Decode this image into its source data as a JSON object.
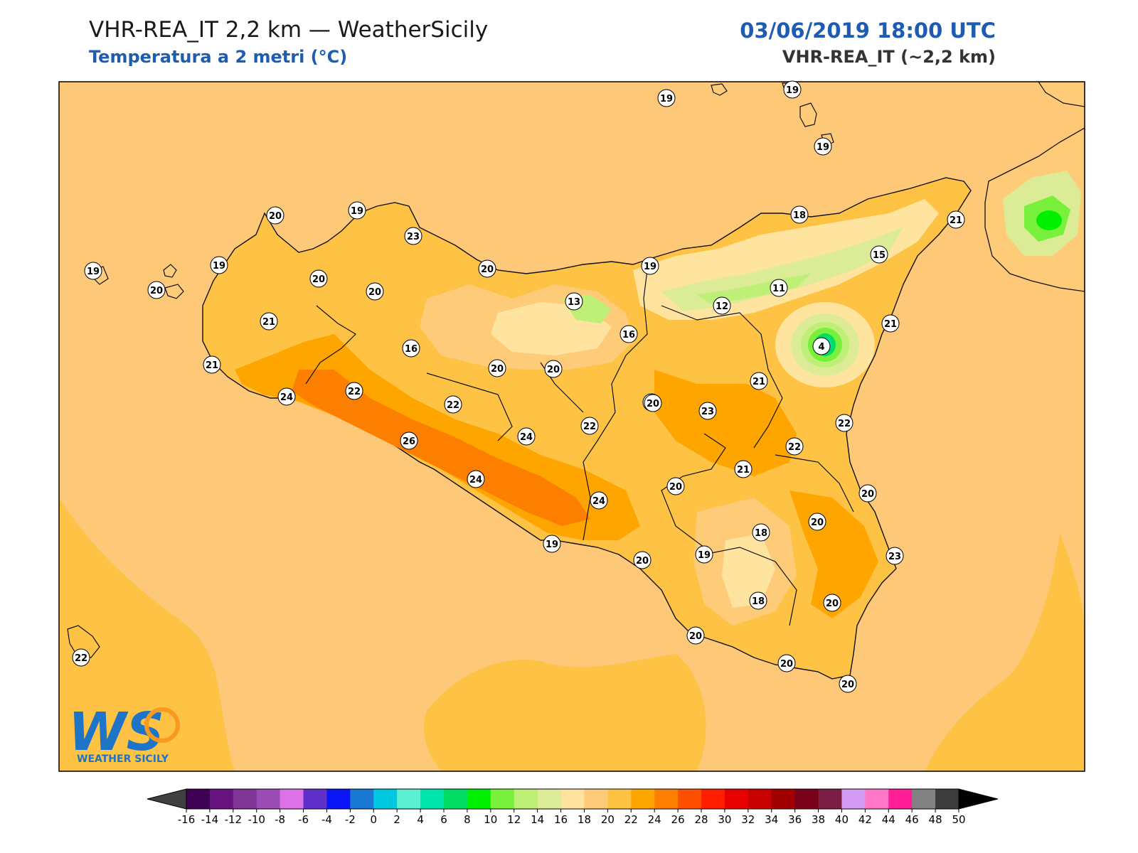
{
  "header": {
    "title": "VHR-REA_IT 2,2 km — WeatherSicily",
    "subtitle": "Temperatura a 2 metri (°C)",
    "datetime": "03/06/2019 18:00 UTC",
    "model": "VHR-REA_IT (~2,2 km)"
  },
  "logo": {
    "initials": "WS",
    "name": "WEATHER SICILY"
  },
  "colorbar": {
    "ticks": [
      "-16",
      "-14",
      "-12",
      "-10",
      "-8",
      "-6",
      "-4",
      "-2",
      "0",
      "2",
      "4",
      "6",
      "8",
      "10",
      "12",
      "14",
      "16",
      "18",
      "20",
      "22",
      "24",
      "26",
      "28",
      "30",
      "32",
      "34",
      "36",
      "38",
      "40",
      "42",
      "44",
      "46",
      "48",
      "50"
    ],
    "colors": [
      "#3d0052",
      "#66127f",
      "#7e3596",
      "#9b4bb4",
      "#dc71e8",
      "#5e2fc9",
      "#0a14f5",
      "#1878d2",
      "#00c8e0",
      "#5cf0d2",
      "#00e6aa",
      "#00dc64",
      "#00f000",
      "#78f03c",
      "#bef078",
      "#dcec96",
      "#ffe4a0",
      "#fecb78",
      "#fec244",
      "#ffa500",
      "#fd7f00",
      "#fd5000",
      "#ff1e00",
      "#e60000",
      "#c80000",
      "#a00000",
      "#780019",
      "#7b1e46",
      "#d59cf5",
      "#ff78c8",
      "#ff1e96",
      "#828282",
      "#3c3c3c"
    ]
  },
  "map": {
    "sea_temp_color": "#fdc878",
    "city_values": [
      {
        "id": "c01",
        "v": "19"
      },
      {
        "id": "c02",
        "v": "19"
      },
      {
        "id": "c03",
        "v": "19"
      },
      {
        "id": "c04",
        "v": "20"
      },
      {
        "id": "c05",
        "v": "19"
      },
      {
        "id": "c06",
        "v": "23"
      },
      {
        "id": "c07",
        "v": "19"
      },
      {
        "id": "c08",
        "v": "19"
      },
      {
        "id": "c09",
        "v": "20"
      },
      {
        "id": "c10",
        "v": "20"
      },
      {
        "id": "c11",
        "v": "20"
      },
      {
        "id": "c12",
        "v": "20"
      },
      {
        "id": "c13",
        "v": "21"
      },
      {
        "id": "c14",
        "v": "21"
      },
      {
        "id": "c15",
        "v": "24"
      },
      {
        "id": "c16",
        "v": "22"
      },
      {
        "id": "c17",
        "v": "16"
      },
      {
        "id": "c18",
        "v": "13"
      },
      {
        "id": "c19",
        "v": "16"
      },
      {
        "id": "c20",
        "v": "20"
      },
      {
        "id": "c21",
        "v": "20"
      },
      {
        "id": "c22",
        "v": "22"
      },
      {
        "id": "c23",
        "v": "26"
      },
      {
        "id": "c24",
        "v": "24"
      },
      {
        "id": "c25",
        "v": "22"
      },
      {
        "id": "c26",
        "v": "24"
      },
      {
        "id": "c27",
        "v": "24"
      },
      {
        "id": "c28",
        "v": "19"
      },
      {
        "id": "c29",
        "v": "20"
      },
      {
        "id": "c30",
        "v": "18"
      },
      {
        "id": "c31",
        "v": "15"
      },
      {
        "id": "c32",
        "v": "21"
      },
      {
        "id": "c33",
        "v": "11"
      },
      {
        "id": "c34",
        "v": "12"
      },
      {
        "id": "c35",
        "v": "4"
      },
      {
        "id": "c36",
        "v": "21"
      },
      {
        "id": "c37",
        "v": "21"
      },
      {
        "id": "c38",
        "v": "20"
      },
      {
        "id": "c39",
        "v": "23"
      },
      {
        "id": "c40",
        "v": "22"
      },
      {
        "id": "c41",
        "v": "22"
      },
      {
        "id": "c42",
        "v": "21"
      },
      {
        "id": "c43",
        "v": "20"
      },
      {
        "id": "c44",
        "v": "20"
      },
      {
        "id": "c45",
        "v": "18"
      },
      {
        "id": "c46",
        "v": "20"
      },
      {
        "id": "c47",
        "v": "23"
      },
      {
        "id": "c48",
        "v": "19"
      },
      {
        "id": "c49",
        "v": "20"
      },
      {
        "id": "c50",
        "v": "18"
      },
      {
        "id": "c51",
        "v": "20"
      },
      {
        "id": "c52",
        "v": "20"
      },
      {
        "id": "c53",
        "v": "20"
      },
      {
        "id": "c54",
        "v": "20"
      },
      {
        "id": "c55",
        "v": "22"
      }
    ]
  }
}
